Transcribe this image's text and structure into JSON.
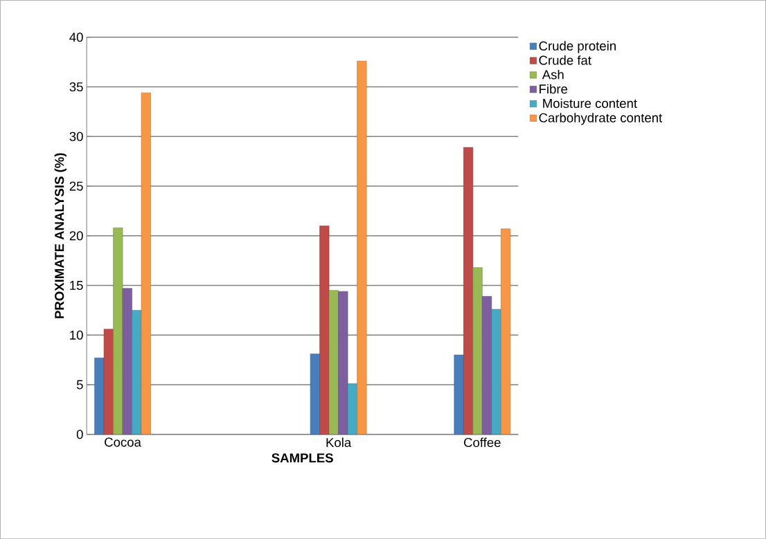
{
  "chart_data": {
    "type": "bar",
    "xlabel": "SAMPLES",
    "ylabel": "PROXIMATE ANALYSIS (%)",
    "categories": [
      "Cocoa",
      null,
      null,
      "Kola",
      null,
      "Coffee"
    ],
    "ylim": [
      0,
      40
    ],
    "yticks": [
      0,
      5,
      10,
      15,
      20,
      25,
      30,
      35,
      40
    ],
    "grid": "y",
    "legend": "right",
    "series": [
      {
        "name": "Crude protein",
        "color": "#4a7ebb",
        "values": [
          7.7,
          null,
          null,
          8.1,
          null,
          8.0
        ]
      },
      {
        "name": "Crude fat",
        "color": "#be4b48",
        "values": [
          10.6,
          null,
          null,
          21.0,
          null,
          28.9
        ]
      },
      {
        "name": " Ash",
        "color": "#98b954",
        "values": [
          20.8,
          null,
          null,
          14.5,
          null,
          16.8
        ]
      },
      {
        "name": "Fibre",
        "color": "#7d5fa0",
        "values": [
          14.7,
          null,
          null,
          14.4,
          null,
          13.9
        ]
      },
      {
        "name": " Moisture content",
        "color": "#46aac5",
        "values": [
          12.5,
          null,
          null,
          5.1,
          null,
          12.6
        ]
      },
      {
        "name": "Carbohydrate content",
        "color": "#f79646",
        "values": [
          34.4,
          null,
          null,
          37.6,
          null,
          20.7
        ]
      }
    ]
  }
}
